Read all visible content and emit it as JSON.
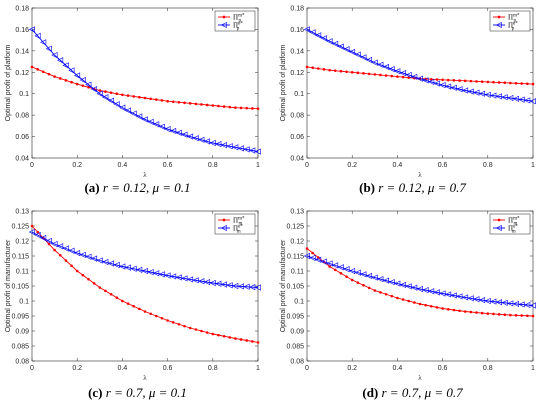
{
  "chart_data": [
    {
      "id": "a",
      "type": "line",
      "caption": {
        "tag": "(a)",
        "text": "r = 0.12, μ = 0.1"
      },
      "title": "",
      "xlabel": "λ",
      "ylabel": "Optimal profit of platform",
      "xlim": [
        0,
        1
      ],
      "ylim": [
        0.04,
        0.18
      ],
      "xticks": [
        "0",
        "0.2",
        "0.4",
        "0.6",
        "0.8",
        "1"
      ],
      "yticks": [
        "0.04",
        "0.06",
        "0.08",
        "0.1",
        "0.12",
        "0.14",
        "0.16",
        "0.18"
      ],
      "grid": false,
      "legend": {
        "position": "top-right",
        "entries": [
          "Π_p^{m*}",
          "Π_p^{e*}"
        ]
      },
      "series": [
        {
          "legend_index": 0,
          "color": "#ff0000",
          "marker": "dot",
          "x": [
            0,
            0.1,
            0.2,
            0.3,
            0.4,
            0.5,
            0.6,
            0.7,
            0.8,
            0.9,
            1.0
          ],
          "y": [
            0.125,
            0.116,
            0.109,
            0.103,
            0.099,
            0.096,
            0.093,
            0.091,
            0.089,
            0.087,
            0.086
          ]
        },
        {
          "legend_index": 1,
          "color": "#0000ff",
          "marker": "triangle-left",
          "x": [
            0,
            0.1,
            0.2,
            0.3,
            0.4,
            0.5,
            0.6,
            0.7,
            0.8,
            0.9,
            1.0
          ],
          "y": [
            0.16,
            0.136,
            0.117,
            0.1,
            0.087,
            0.076,
            0.067,
            0.06,
            0.054,
            0.05,
            0.046
          ]
        }
      ]
    },
    {
      "id": "b",
      "type": "line",
      "caption": {
        "tag": "(b)",
        "text": "r = 0.12, μ = 0.7"
      },
      "title": "",
      "xlabel": "λ",
      "ylabel": "Optimal profit of platform",
      "xlim": [
        0,
        1
      ],
      "ylim": [
        0.04,
        0.18
      ],
      "xticks": [
        "0",
        "0.2",
        "0.4",
        "0.6",
        "0.8",
        "1"
      ],
      "yticks": [
        "0.04",
        "0.06",
        "0.08",
        "0.1",
        "0.12",
        "0.14",
        "0.16",
        "0.18"
      ],
      "grid": false,
      "legend": {
        "position": "top-right",
        "entries": [
          "Π_p^{m*}",
          "Π_p^{e*}"
        ]
      },
      "series": [
        {
          "legend_index": 0,
          "color": "#ff0000",
          "marker": "dot",
          "x": [
            0,
            0.1,
            0.2,
            0.3,
            0.4,
            0.5,
            0.6,
            0.7,
            0.8,
            0.9,
            1.0
          ],
          "y": [
            0.125,
            0.122,
            0.12,
            0.118,
            0.116,
            0.114,
            0.113,
            0.112,
            0.111,
            0.11,
            0.109
          ]
        },
        {
          "legend_index": 1,
          "color": "#0000ff",
          "marker": "triangle-left",
          "x": [
            0,
            0.1,
            0.2,
            0.3,
            0.4,
            0.5,
            0.6,
            0.7,
            0.8,
            0.9,
            1.0
          ],
          "y": [
            0.16,
            0.149,
            0.139,
            0.129,
            0.121,
            0.114,
            0.108,
            0.103,
            0.099,
            0.096,
            0.093
          ]
        }
      ]
    },
    {
      "id": "c",
      "type": "line",
      "caption": {
        "tag": "(c)",
        "text": "r = 0.7, μ = 0.1"
      },
      "title": "",
      "xlabel": "λ",
      "ylabel": "Optimal profit of manufacturer",
      "xlim": [
        0,
        1
      ],
      "ylim": [
        0.08,
        0.13
      ],
      "xticks": [
        "0",
        "0.2",
        "0.4",
        "0.6",
        "0.8",
        "1"
      ],
      "yticks": [
        "0.08",
        "0.085",
        "0.09",
        "0.095",
        "0.1",
        "0.105",
        "0.11",
        "0.115",
        "0.12",
        "0.125",
        "0.13"
      ],
      "grid": false,
      "legend": {
        "position": "top-right",
        "entries": [
          "Π_m^{m*}",
          "Π_m^{e*}"
        ]
      },
      "series": [
        {
          "legend_index": 0,
          "color": "#ff0000",
          "marker": "dot",
          "x": [
            0,
            0.1,
            0.2,
            0.3,
            0.4,
            0.5,
            0.6,
            0.7,
            0.8,
            0.9,
            1.0
          ],
          "y": [
            0.125,
            0.117,
            0.11,
            0.1045,
            0.1,
            0.0965,
            0.0935,
            0.091,
            0.089,
            0.0875,
            0.0862
          ]
        },
        {
          "legend_index": 1,
          "color": "#0000ff",
          "marker": "triangle-left",
          "x": [
            0,
            0.1,
            0.2,
            0.3,
            0.4,
            0.5,
            0.6,
            0.7,
            0.8,
            0.9,
            1.0
          ],
          "y": [
            0.123,
            0.119,
            0.116,
            0.1135,
            0.1115,
            0.11,
            0.1085,
            0.1072,
            0.106,
            0.105,
            0.1045
          ]
        }
      ]
    },
    {
      "id": "d",
      "type": "line",
      "caption": {
        "tag": "(d)",
        "text": "r = 0.7, μ = 0.7"
      },
      "title": "",
      "xlabel": "λ",
      "ylabel": "Optimal profit of manufacturer",
      "xlim": [
        0,
        1
      ],
      "ylim": [
        0.08,
        0.13
      ],
      "xticks": [
        "0",
        "0.2",
        "0.4",
        "0.6",
        "0.8",
        "1"
      ],
      "yticks": [
        "0.08",
        "0.085",
        "0.09",
        "0.095",
        "0.1",
        "0.105",
        "0.11",
        "0.115",
        "0.12",
        "0.125",
        "0.13"
      ],
      "grid": false,
      "legend": {
        "position": "top-right",
        "entries": [
          "Π_m^{m*}",
          "Π_m^{e*}"
        ]
      },
      "series": [
        {
          "legend_index": 0,
          "color": "#ff0000",
          "marker": "dot",
          "x": [
            0,
            0.1,
            0.2,
            0.3,
            0.4,
            0.5,
            0.6,
            0.7,
            0.8,
            0.9,
            1.0
          ],
          "y": [
            0.1175,
            0.1115,
            0.107,
            0.1035,
            0.101,
            0.099,
            0.0975,
            0.0965,
            0.0958,
            0.0953,
            0.095
          ]
        },
        {
          "legend_index": 1,
          "color": "#0000ff",
          "marker": "triangle-left",
          "x": [
            0,
            0.1,
            0.2,
            0.3,
            0.4,
            0.5,
            0.6,
            0.7,
            0.8,
            0.9,
            1.0
          ],
          "y": [
            0.115,
            0.1125,
            0.11,
            0.1078,
            0.1058,
            0.104,
            0.1025,
            0.1012,
            0.1,
            0.0992,
            0.0985
          ]
        }
      ]
    }
  ]
}
